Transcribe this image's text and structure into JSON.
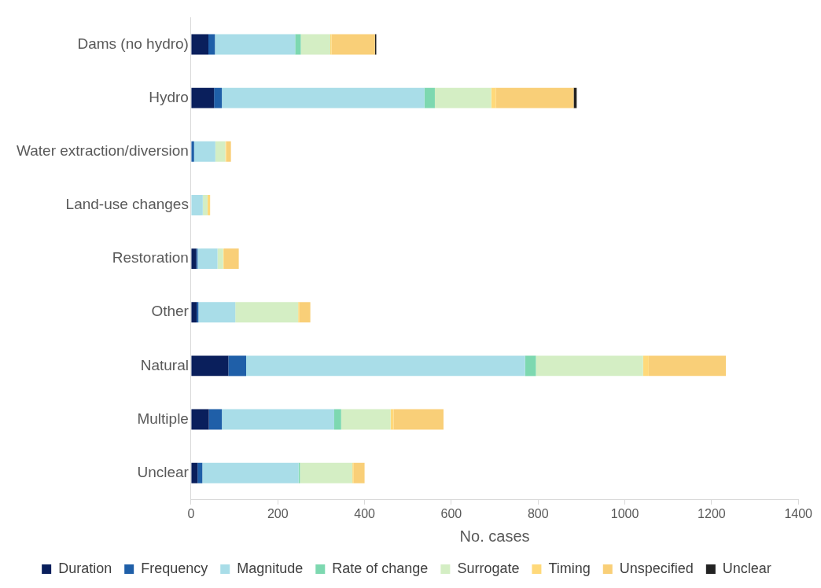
{
  "chart_data": {
    "type": "bar",
    "orientation": "horizontal",
    "stacked": true,
    "xlabel": "No. cases",
    "categories": [
      "Dams (no hydro)",
      "Hydro",
      "Water extraction/diversion",
      "Land-use changes",
      "Restoration",
      "Other",
      "Natural",
      "Multiple",
      "Unclear"
    ],
    "series": [
      {
        "name": "Duration",
        "color": "#0a1f5c",
        "values": [
          40,
          53,
          0,
          0,
          12,
          13,
          86,
          41,
          15
        ]
      },
      {
        "name": "Frequency",
        "color": "#1f5fa8",
        "values": [
          15,
          18,
          7,
          0,
          3,
          4,
          41,
          30,
          11
        ]
      },
      {
        "name": "Magnitude",
        "color": "#a9dde8",
        "values": [
          185,
          467,
          49,
          27,
          46,
          85,
          643,
          259,
          222
        ]
      },
      {
        "name": "Rate of change",
        "color": "#7dd8b0",
        "values": [
          13,
          24,
          0,
          0,
          0,
          0,
          25,
          16,
          3
        ]
      },
      {
        "name": "Surrogate",
        "color": "#d4eec4",
        "values": [
          68,
          130,
          23,
          11,
          13,
          145,
          247,
          114,
          121
        ]
      },
      {
        "name": "Timing",
        "color": "#ffd97a",
        "values": [
          3,
          11,
          2,
          6,
          2,
          3,
          13,
          7,
          3
        ]
      },
      {
        "name": "Unspecified",
        "color": "#f9cf78",
        "values": [
          100,
          179,
          11,
          0,
          34,
          25,
          178,
          115,
          25
        ]
      },
      {
        "name": "Unclear",
        "color": "#222222",
        "values": [
          3,
          7,
          0,
          0,
          0,
          0,
          0,
          0,
          0
        ]
      }
    ],
    "xlim": [
      0,
      1400
    ],
    "xticks": [
      0,
      200,
      400,
      600,
      800,
      1000,
      1200,
      1400
    ],
    "grid": false,
    "legend": "bottom"
  }
}
